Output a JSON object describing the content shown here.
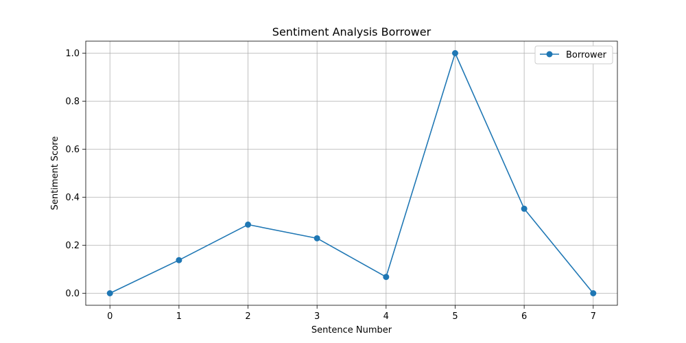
{
  "chart_data": {
    "type": "line",
    "title": "Sentiment Analysis Borrower",
    "xlabel": "Sentence Number",
    "ylabel": "Sentiment Score",
    "x": [
      0,
      1,
      2,
      3,
      4,
      5,
      6,
      7
    ],
    "series": [
      {
        "name": "Borrower",
        "values": [
          0.0,
          0.138,
          0.286,
          0.229,
          0.068,
          1.0,
          0.352,
          0.0
        ],
        "color": "#1f77b4",
        "marker": "circle"
      }
    ],
    "xlim": [
      -0.35,
      7.35
    ],
    "ylim": [
      -0.05,
      1.05
    ],
    "xticks": [
      "0",
      "1",
      "2",
      "3",
      "4",
      "5",
      "6",
      "7"
    ],
    "yticks": [
      "0.0",
      "0.2",
      "0.4",
      "0.6",
      "0.8",
      "1.0"
    ],
    "grid": true,
    "legend_position": "top-right",
    "gridColor": "#b0b0b0",
    "axisColor": "#000000"
  }
}
